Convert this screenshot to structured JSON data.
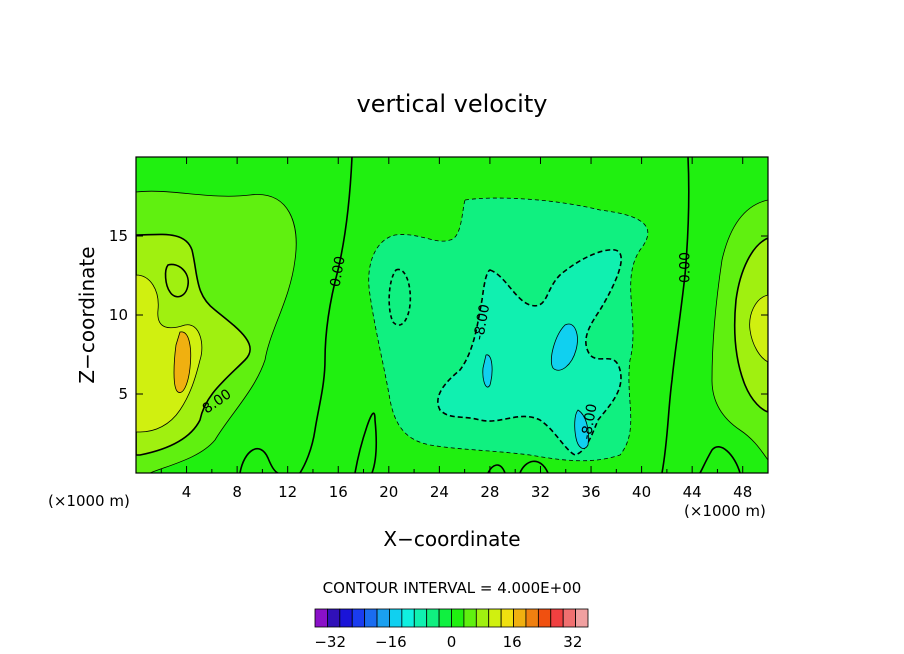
{
  "chart_data": {
    "type": "heatmap",
    "title": "vertical velocity",
    "xlabel": "X−coordinate",
    "ylabel": "Z−coordinate",
    "x_unit_left": "(×1000 m)",
    "x_unit_right": "(×1000 m)",
    "xlim": [
      0,
      50
    ],
    "ylim": [
      0,
      20
    ],
    "x_ticks": [
      4,
      8,
      12,
      16,
      20,
      24,
      28,
      32,
      36,
      40,
      44,
      48
    ],
    "y_ticks": [
      5,
      10,
      15
    ],
    "contour_interval_label": "CONTOUR INTERVAL = 4.000E+00",
    "contour_labels": [
      {
        "text": "0.00",
        "x": 16.3,
        "y": 12.7,
        "angle": -80
      },
      {
        "text": "0.00",
        "x": 43.8,
        "y": 13.0,
        "angle": -90
      },
      {
        "text": "8.00",
        "x": 6.6,
        "y": 4.3,
        "angle": -35
      },
      {
        "text": "-8.00",
        "x": 27.7,
        "y": 9.5,
        "angle": -80
      },
      {
        "text": "-8.00",
        "x": 36.2,
        "y": 3.2,
        "angle": -80
      }
    ],
    "fields": [
      {
        "value": 16,
        "x": 2.0,
        "y": 11.0
      },
      {
        "value": 12,
        "x": 3.5,
        "y": 8.0
      },
      {
        "value": 8,
        "x": 47.5,
        "y": 10.0
      },
      {
        "value": -8,
        "x": 30.0,
        "y": 8.0
      },
      {
        "value": -12,
        "x": 33.0,
        "y": 7.0
      }
    ],
    "colorbar": {
      "min": -36,
      "max": 36,
      "ticks": [
        "−32",
        "−16",
        "0",
        "16",
        "32"
      ],
      "tick_values": [
        -32,
        -16,
        0,
        16,
        32
      ],
      "colors": [
        "#8a10c8",
        "#3010b8",
        "#1a14d8",
        "#1a3cf0",
        "#1a6cf0",
        "#1aa0f0",
        "#10d0f0",
        "#10f0e0",
        "#10f0b0",
        "#10f080",
        "#10f040",
        "#20f010",
        "#60f010",
        "#a0f010",
        "#d0f010",
        "#f0e010",
        "#f0b010",
        "#f08010",
        "#f05010",
        "#f04040",
        "#f07070",
        "#f0a0a0"
      ]
    },
    "grid": false
  }
}
